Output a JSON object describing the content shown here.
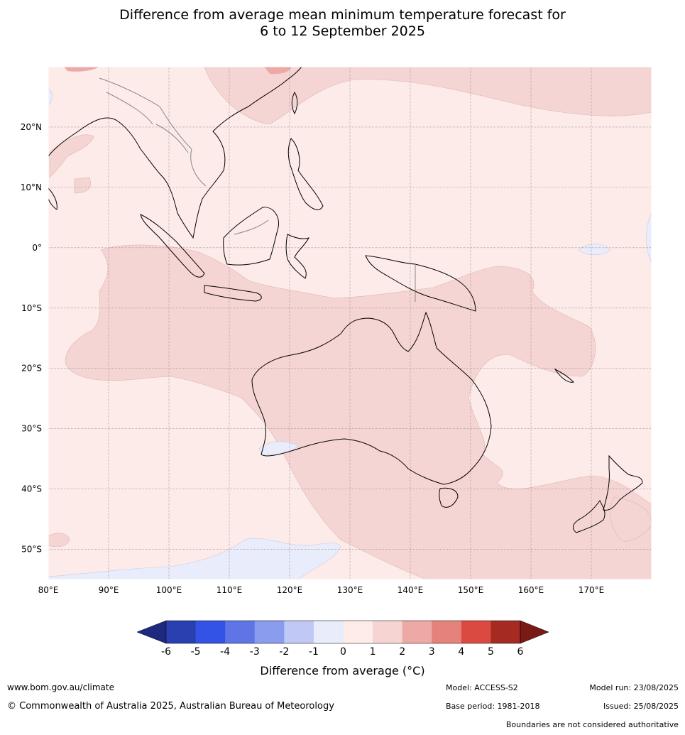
{
  "title_line1": "Difference from average mean minimum temperature forecast for",
  "title_line2": "6 to 12 September 2025",
  "lon_ticks": [
    {
      "lon": 80,
      "label": "80°E"
    },
    {
      "lon": 90,
      "label": "90°E"
    },
    {
      "lon": 100,
      "label": "100°E"
    },
    {
      "lon": 110,
      "label": "110°E"
    },
    {
      "lon": 120,
      "label": "120°E"
    },
    {
      "lon": 130,
      "label": "130°E"
    },
    {
      "lon": 140,
      "label": "140°E"
    },
    {
      "lon": 150,
      "label": "150°E"
    },
    {
      "lon": 160,
      "label": "160°E"
    },
    {
      "lon": 170,
      "label": "170°E"
    }
  ],
  "lat_ticks": [
    {
      "lat": 20,
      "label": "20°N"
    },
    {
      "lat": 10,
      "label": "10°N"
    },
    {
      "lat": 0,
      "label": "0°"
    },
    {
      "lat": -10,
      "label": "10°S"
    },
    {
      "lat": -20,
      "label": "20°S"
    },
    {
      "lat": -30,
      "label": "30°S"
    },
    {
      "lat": -40,
      "label": "40°S"
    },
    {
      "lat": -50,
      "label": "50°S"
    }
  ],
  "extent": {
    "lon_min": 80,
    "lon_max": 180,
    "lat_min": -55,
    "lat_max": 30
  },
  "colorbar": {
    "levels": [
      "-6",
      "-5",
      "-4",
      "-3",
      "-2",
      "-1",
      "0",
      "1",
      "2",
      "3",
      "4",
      "5",
      "6"
    ],
    "colors": [
      "#2a3fb0",
      "#3352e6",
      "#5f75e6",
      "#8a9cee",
      "#c0c8f5",
      "#e8ecfb",
      "#fdecea",
      "#f5d4d2",
      "#eda9a5",
      "#e6827c",
      "#da4a40",
      "#a52a22"
    ],
    "under_color": "#1e2a80",
    "over_color": "#7a1a16",
    "label": "Difference from average (°C)"
  },
  "fill_colors": {
    "base": "#fcebe9",
    "warm": "#f5d5d3",
    "warmer": "#eda9a5",
    "cool": "#e8ecfb"
  },
  "footer": {
    "website": "www.bom.gov.au/climate",
    "copyright": "© Commonwealth of Australia 2025, Australian Bureau of Meteorology",
    "model": "Model: ACCESS-S2",
    "base_period": "Base period: 1981-2018",
    "model_run": "Model run: 23/08/2025",
    "issued": "Issued: 25/08/2025",
    "disclaimer": "Boundaries are not considered authoritative"
  }
}
